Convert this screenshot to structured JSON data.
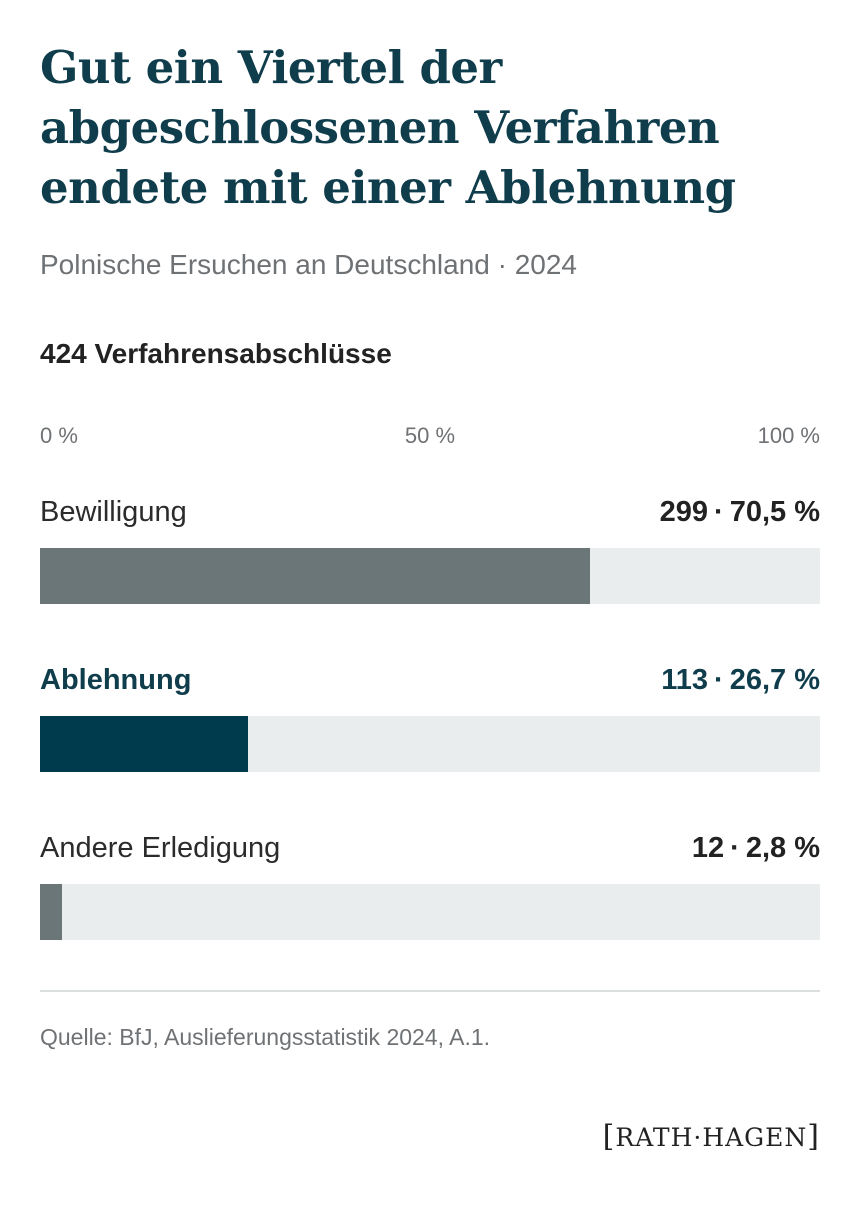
{
  "header": {
    "title": "Gut ein Viertel der abgeschlossenen Verfahren endete mit einer Ablehnung",
    "subtitle": "Polnische Ersuchen an Deutschland · 2024",
    "total_label": "424 Verfahrensabschlüsse"
  },
  "chart_data": {
    "type": "bar",
    "orientation": "horizontal",
    "title": "Gut ein Viertel der abgeschlossenen Verfahren endete mit einer Ablehnung",
    "subtitle": "Polnische Ersuchen an Deutschland · 2024",
    "total": 424,
    "xlim": [
      0,
      100
    ],
    "ticks": [
      "0 %",
      "50 %",
      "100 %"
    ],
    "bars": [
      {
        "label": "Bewilligung",
        "count": 299,
        "count_text": "299",
        "percent": 70.5,
        "percent_text": "70,5 %",
        "color": "#6b7679",
        "style": "muted"
      },
      {
        "label": "Ablehnung",
        "count": 113,
        "count_text": "113",
        "percent": 26.7,
        "percent_text": "26,7 %",
        "color": "#003a4d",
        "style": "accent"
      },
      {
        "label": "Andere Erledigung",
        "count": 12,
        "count_text": "12",
        "percent": 2.8,
        "percent_text": "2,8 %",
        "color": "#6b7679",
        "style": "muted"
      }
    ],
    "track_color": "#e9eded"
  },
  "footer": {
    "source": "Quelle: BfJ, Auslieferungsstatistik 2024, A.1.",
    "logo": {
      "open": "[",
      "text": "RATH·HAGEN",
      "close": "]"
    }
  }
}
